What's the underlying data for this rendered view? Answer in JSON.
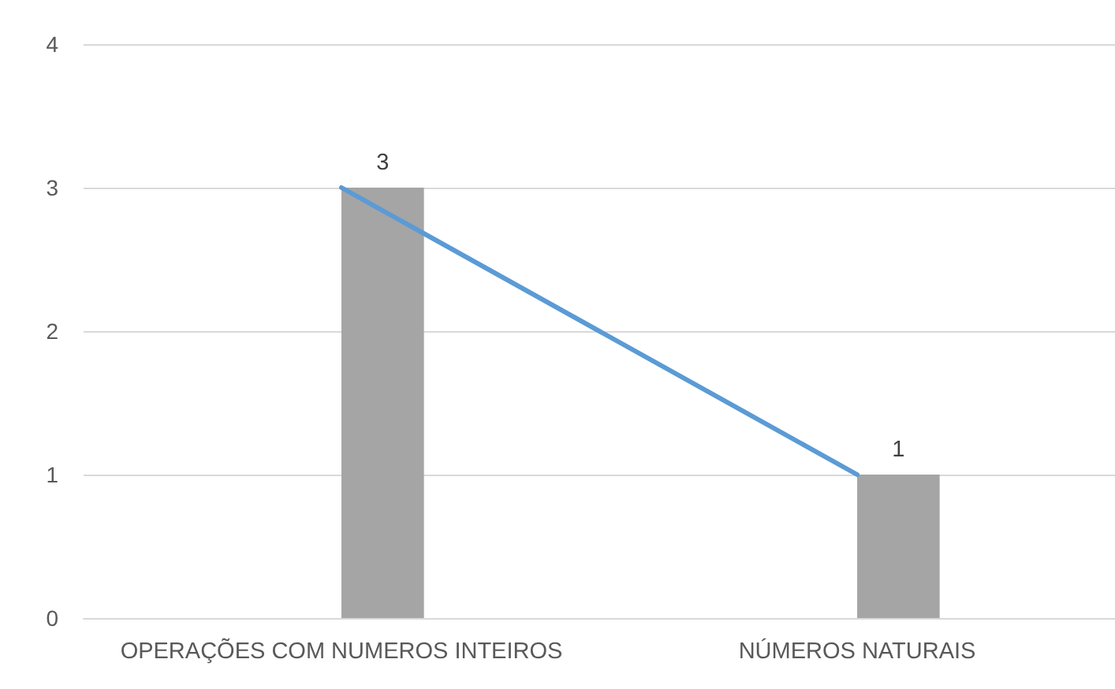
{
  "chart_data": {
    "type": "bar",
    "categories": [
      "OPERAÇÕES COM NUMEROS INTEIROS",
      "NÚMEROS NATURAIS"
    ],
    "series": [
      {
        "color": "#a5a5a5",
        "values": [
          3,
          1
        ],
        "value_labels": [
          "3",
          "1"
        ]
      },
      {
        "type": "line",
        "color": "#5b9bd5",
        "values": [
          3,
          1
        ]
      }
    ],
    "ylim": [
      0,
      4
    ],
    "yticks": [
      0,
      1,
      2,
      3,
      4
    ],
    "grid": "y"
  }
}
